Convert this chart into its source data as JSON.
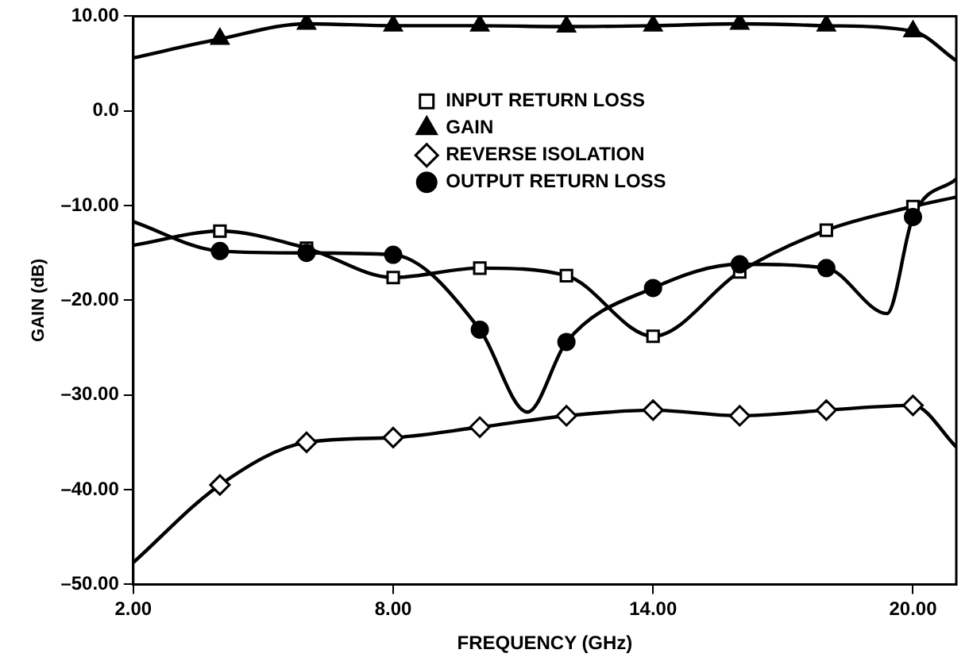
{
  "chart_data": {
    "type": "line",
    "xlabel": "FREQUENCY (GHz)",
    "ylabel": "GAIN (dB)",
    "xlim": [
      2,
      21
    ],
    "xticks": [
      {
        "value": 2,
        "label": "2.00"
      },
      {
        "value": 8,
        "label": "8.00"
      },
      {
        "value": 14,
        "label": "14.00"
      },
      {
        "value": 20,
        "label": "20.00"
      }
    ],
    "ylim": [
      -50,
      10
    ],
    "yticks": [
      {
        "value": 10,
        "label": "10.00"
      },
      {
        "value": 0,
        "label": "0.0"
      },
      {
        "value": -10,
        "label": "–10.00"
      },
      {
        "value": -20,
        "label": "–20.00"
      },
      {
        "value": -30,
        "label": "–30.00"
      },
      {
        "value": -40,
        "label": "–40.00"
      },
      {
        "value": -50,
        "label": "–50.00"
      }
    ],
    "grid": false,
    "legend": "top",
    "line_style": "solid",
    "series": [
      {
        "type": "line",
        "marker": "none",
        "color": "#000000",
        "x": [
          2,
          4,
          6,
          8,
          10,
          12,
          14,
          16,
          18,
          20,
          21
        ],
        "values": [
          -14.2,
          -12.7,
          -14.5,
          -17.6,
          -16.6,
          -17.4,
          -23.8,
          -17,
          -12.6,
          -10.1,
          -9.1
        ]
      },
      {
        "type": "line",
        "marker": "none",
        "color": "#000000",
        "x": [
          2,
          4,
          6,
          8,
          10,
          12,
          14,
          16,
          18,
          20,
          21
        ],
        "values": [
          5.6,
          7.6,
          9.2,
          9,
          9,
          8.9,
          9,
          9.2,
          9,
          8.4,
          5.3
        ]
      },
      {
        "type": "line",
        "marker": "none",
        "color": "#000000",
        "x": [
          2,
          4,
          6,
          8,
          10,
          12,
          14,
          16,
          18,
          20,
          21
        ],
        "values": [
          -47.7,
          -39.5,
          -35,
          -34.5,
          -33.4,
          -32.2,
          -31.6,
          -32.2,
          -31.6,
          -31.1,
          -35.5
        ]
      },
      {
        "type": "line",
        "marker": "none",
        "color": "#000000",
        "x": [
          2,
          4,
          6,
          8,
          10,
          11.1,
          12,
          14,
          16,
          18,
          19.4,
          20,
          21
        ],
        "values": [
          -11.7,
          -14.8,
          -15,
          -15.2,
          -23.1,
          -31.8,
          -24.4,
          -18.7,
          -16.2,
          -16.6,
          -21.4,
          -11.2,
          -7.2
        ]
      },
      {
        "type": "scatter",
        "name": "INPUT RETURN LOSS",
        "marker": "square",
        "color": "#000000",
        "x": [
          4,
          6,
          8,
          10,
          12,
          14,
          16,
          18,
          20
        ],
        "values": [
          -12.7,
          -14.5,
          -17.6,
          -16.6,
          -17.4,
          -23.8,
          -17,
          -12.6,
          -10.1
        ]
      },
      {
        "type": "scatter",
        "name": "GAIN",
        "marker": "triangle",
        "color": "#000000",
        "x": [
          4,
          6,
          8,
          10,
          12,
          14,
          16,
          18,
          20
        ],
        "values": [
          7.6,
          9.2,
          9,
          9,
          8.9,
          9,
          9.2,
          9,
          8.4
        ]
      },
      {
        "type": "scatter",
        "name": "REVERSE ISOLATION",
        "marker": "diamond",
        "color": "#000000",
        "x": [
          4,
          6,
          8,
          10,
          12,
          14,
          16,
          18,
          20
        ],
        "values": [
          -39.5,
          -35,
          -34.5,
          -33.4,
          -32.2,
          -31.6,
          -32.2,
          -31.6,
          -31.1
        ]
      },
      {
        "type": "scatter",
        "name": "OUTPUT RETURN LOSS",
        "marker": "circle",
        "color": "#000000",
        "x": [
          4,
          6,
          8,
          10,
          12,
          14,
          16,
          18,
          20
        ],
        "values": [
          -14.8,
          -15,
          -15.2,
          -23.1,
          -24.4,
          -18.7,
          -16.2,
          -16.6,
          -11.2
        ]
      }
    ]
  }
}
